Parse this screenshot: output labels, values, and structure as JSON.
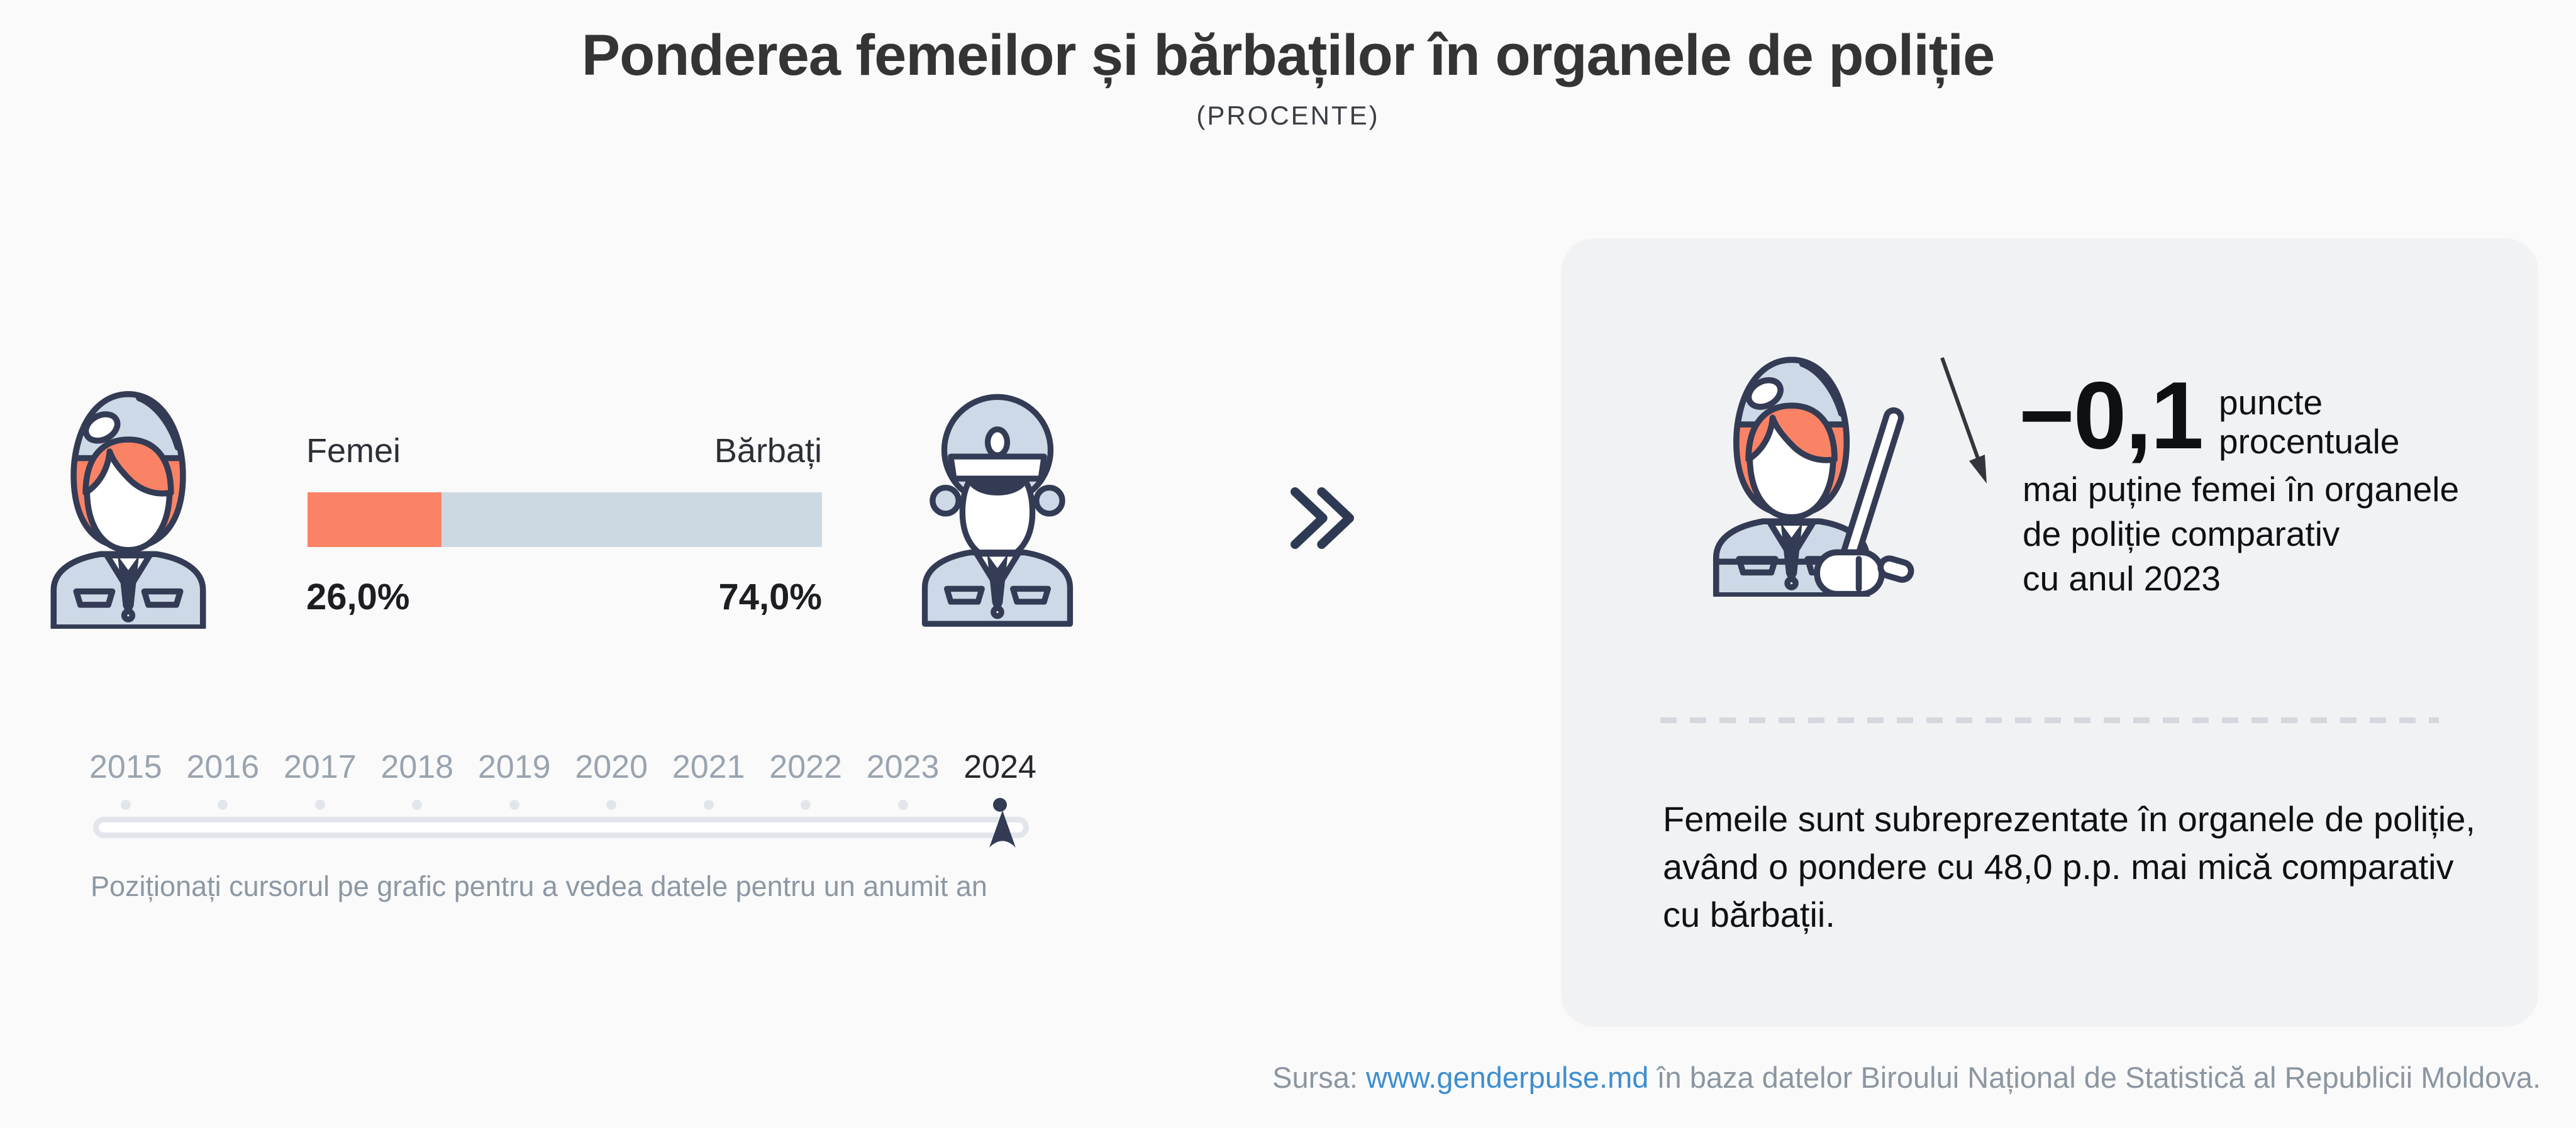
{
  "title": "Ponderea femeilor și bărbaților în organele de poliție",
  "subtitle": "(PROCENTE)",
  "comparison": {
    "female_label": "Femei",
    "male_label": "Bărbați",
    "female_value_label": "26,0%",
    "male_value_label": "74,0%"
  },
  "timeline": {
    "years": [
      "2015",
      "2016",
      "2017",
      "2018",
      "2019",
      "2020",
      "2021",
      "2022",
      "2023",
      "2024"
    ],
    "selected_year": "2024",
    "hint": "Poziționați cursorul pe grafic pentru a vedea datele pentru un anumit an"
  },
  "panel": {
    "delta_value": "−0,1",
    "delta_unit_lines": [
      "puncte",
      "procentuale"
    ],
    "delta_description_lines": [
      "mai puține femei în organele",
      "de poliție comparativ",
      "cu anul 2023"
    ],
    "summary_lines": [
      "Femeile sunt subreprezentate în organele de poliție,",
      "având o pondere cu 48,0 p.p. mai mică comparativ",
      "cu bărbații."
    ]
  },
  "footer": {
    "source_prefix": "Sursa: ",
    "source_link": "www.genderpulse.md",
    "source_suffix": " în baza datelor Biroului Național de Statistică al Republicii Moldova."
  },
  "icons": {
    "left": "female-police-officer-icon",
    "right_of_bar": "male-police-officer-icon",
    "panel": "female-police-officer-with-baton-icon",
    "between_sections": "double-chevron-right-icon",
    "panel_arrow": "down-right-arrow-icon",
    "slider_cursor": "slider-cursor-marker-icon"
  },
  "colors": {
    "background": "#fafafb",
    "panel_background": "#f1f2f4",
    "female_accent": "#fa8365",
    "male_accent": "#ccd9e3",
    "outline_navy": "#333b55",
    "muted_text": "#8d98a4",
    "link_blue": "#3d8ecf"
  },
  "chart_data": {
    "type": "bar",
    "orientation": "horizontal",
    "title": "Ponderea femeilor și bărbaților în organele de poliție",
    "subtitle": "(PROCENTE)",
    "unit": "procente",
    "categories": [
      "Femei",
      "Bărbați"
    ],
    "values": [
      26.0,
      74.0
    ],
    "value_labels": [
      "26,0%",
      "74,0%"
    ],
    "series_colors": [
      "#fa8365",
      "#ccd9e3"
    ],
    "year": 2024,
    "years_available": [
      2015,
      2016,
      2017,
      2018,
      2019,
      2020,
      2021,
      2022,
      2023,
      2024
    ],
    "change_vs_previous_year_pp": -0.1,
    "female_male_gap_pp": 48.0,
    "legend_position": "above-bar",
    "grid": false
  }
}
